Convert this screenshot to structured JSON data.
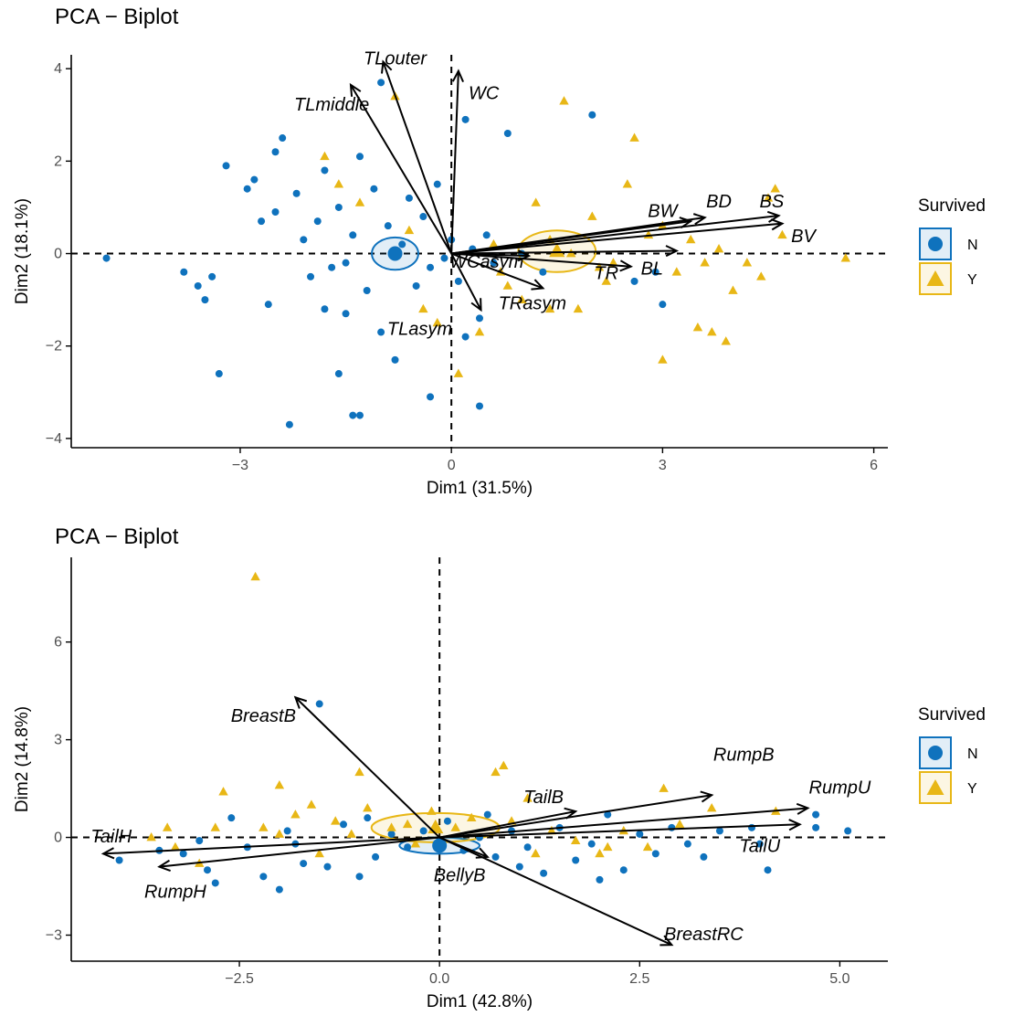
{
  "colors": {
    "N": "#0f72bd",
    "Y": "#e8b716",
    "axis": "#000000",
    "tick_text": "#4d4d4d"
  },
  "chart_data": [
    {
      "type": "scatter",
      "title": "PCA − Biplot",
      "xlabel": "Dim1 (31.5%)",
      "ylabel": "Dim2 (18.1%)",
      "xlim": [
        -5.4,
        6.2
      ],
      "ylim": [
        -4.2,
        4.3
      ],
      "xticks": [
        -3,
        0,
        3,
        6
      ],
      "xtick_labels": [
        "−3",
        "0",
        "3",
        "6"
      ],
      "yticks": [
        -4,
        -2,
        0,
        2,
        4
      ],
      "ytick_labels": [
        "−4",
        "−2",
        "0",
        "2",
        "4"
      ],
      "legend": {
        "title": "Survived",
        "entries": [
          "N",
          "Y"
        ],
        "position": "right"
      },
      "centroids": [
        {
          "group": "N",
          "x": -0.8,
          "y": 0.0,
          "rx": 0.33,
          "ry": 0.35
        },
        {
          "group": "Y",
          "x": 1.5,
          "y": 0.05,
          "rx": 0.55,
          "ry": 0.45
        }
      ],
      "vectors": [
        {
          "name": "TLouter",
          "x": -0.97,
          "y": 4.15,
          "lx": -0.8,
          "ly": 4.2
        },
        {
          "name": "TLmiddle",
          "x": -1.43,
          "y": 3.65,
          "lx": -1.7,
          "ly": 3.2
        },
        {
          "name": "WC",
          "x": 0.1,
          "y": 3.95,
          "lx": 0.46,
          "ly": 3.45
        },
        {
          "name": "BW",
          "x": 3.4,
          "y": 0.7,
          "lx": 3.0,
          "ly": 0.9
        },
        {
          "name": "BD",
          "x": 3.6,
          "y": 0.78,
          "lx": 3.8,
          "ly": 1.1
        },
        {
          "name": "BS",
          "x": 4.65,
          "y": 0.82,
          "lx": 4.55,
          "ly": 1.1
        },
        {
          "name": "BV",
          "x": 4.7,
          "y": 0.65,
          "lx": 5.0,
          "ly": 0.35
        },
        {
          "name": "BL",
          "x": 3.2,
          "y": 0.06,
          "lx": 2.85,
          "ly": -0.35
        },
        {
          "name": "TR",
          "x": 2.55,
          "y": -0.28,
          "lx": 2.2,
          "ly": -0.45
        },
        {
          "name": "WCasym",
          "x": 1.1,
          "y": -0.05,
          "lx": 0.5,
          "ly": -0.2
        },
        {
          "name": "TRasym",
          "x": 1.3,
          "y": -0.75,
          "lx": 1.15,
          "ly": -1.1
        },
        {
          "name": "TLasym",
          "x": 0.42,
          "y": -1.22,
          "lx": -0.45,
          "ly": -1.65
        }
      ],
      "series": [
        {
          "name": "N",
          "points": [
            [
              -4.9,
              -0.1
            ],
            [
              -3.8,
              -0.4
            ],
            [
              -3.6,
              -0.7
            ],
            [
              -3.5,
              -1.0
            ],
            [
              -3.3,
              -2.6
            ],
            [
              -3.2,
              1.9
            ],
            [
              -2.9,
              1.4
            ],
            [
              -2.8,
              1.6
            ],
            [
              -2.7,
              0.7
            ],
            [
              -2.6,
              -1.1
            ],
            [
              -2.5,
              0.9
            ],
            [
              -2.4,
              2.5
            ],
            [
              -2.3,
              -3.7
            ],
            [
              -2.2,
              1.3
            ],
            [
              -2.1,
              0.3
            ],
            [
              -2.0,
              -0.5
            ],
            [
              -1.9,
              0.7
            ],
            [
              -1.8,
              1.8
            ],
            [
              -1.7,
              -0.3
            ],
            [
              -1.6,
              1.0
            ],
            [
              -1.5,
              -1.3
            ],
            [
              -1.4,
              0.4
            ],
            [
              -1.3,
              2.1
            ],
            [
              -1.2,
              -0.8
            ],
            [
              -1.1,
              1.4
            ],
            [
              -1.0,
              -1.7
            ],
            [
              -0.9,
              0.6
            ],
            [
              -0.8,
              -2.3
            ],
            [
              -0.7,
              0.2
            ],
            [
              -0.6,
              1.2
            ],
            [
              -0.5,
              -0.7
            ],
            [
              -0.4,
              0.8
            ],
            [
              -0.3,
              -0.3
            ],
            [
              -0.2,
              1.5
            ],
            [
              -0.1,
              -0.1
            ],
            [
              0.0,
              0.3
            ],
            [
              0.1,
              -0.6
            ],
            [
              0.2,
              2.9
            ],
            [
              0.3,
              0.1
            ],
            [
              0.4,
              -1.4
            ],
            [
              0.5,
              0.4
            ],
            [
              0.6,
              -0.2
            ],
            [
              0.8,
              2.6
            ],
            [
              1.0,
              0.0
            ],
            [
              1.3,
              -0.4
            ],
            [
              2.0,
              3.0
            ],
            [
              2.6,
              -0.6
            ],
            [
              2.9,
              -0.4
            ],
            [
              3.0,
              -1.1
            ],
            [
              -1.6,
              -2.6
            ],
            [
              -1.4,
              -3.5
            ],
            [
              -1.3,
              -3.5
            ],
            [
              -1.8,
              -1.2
            ],
            [
              -0.3,
              -3.1
            ],
            [
              0.4,
              -3.3
            ],
            [
              0.2,
              -1.8
            ],
            [
              -1.0,
              3.7
            ],
            [
              -2.5,
              2.2
            ],
            [
              -3.4,
              -0.5
            ],
            [
              -1.5,
              -0.2
            ]
          ]
        },
        {
          "name": "Y",
          "points": [
            [
              -1.8,
              2.1
            ],
            [
              -1.6,
              1.5
            ],
            [
              -1.3,
              1.1
            ],
            [
              -0.8,
              3.4
            ],
            [
              -0.6,
              0.5
            ],
            [
              -0.4,
              -1.2
            ],
            [
              -0.2,
              -1.5
            ],
            [
              0.1,
              -2.6
            ],
            [
              0.4,
              -1.7
            ],
            [
              0.6,
              0.2
            ],
            [
              0.8,
              -0.7
            ],
            [
              1.0,
              -1.0
            ],
            [
              1.2,
              1.1
            ],
            [
              1.4,
              0.3
            ],
            [
              1.6,
              3.3
            ],
            [
              1.8,
              -1.2
            ],
            [
              2.0,
              0.8
            ],
            [
              2.1,
              -0.3
            ],
            [
              2.3,
              -0.2
            ],
            [
              2.5,
              1.5
            ],
            [
              2.6,
              2.5
            ],
            [
              2.8,
              0.4
            ],
            [
              3.0,
              0.6
            ],
            [
              3.2,
              -0.4
            ],
            [
              3.4,
              0.3
            ],
            [
              3.6,
              -0.2
            ],
            [
              3.8,
              0.1
            ],
            [
              4.0,
              -0.8
            ],
            [
              4.2,
              -0.2
            ],
            [
              4.5,
              1.2
            ],
            [
              4.6,
              1.4
            ],
            [
              4.7,
              0.4
            ],
            [
              5.6,
              -0.1
            ],
            [
              4.4,
              -0.5
            ],
            [
              3.9,
              -1.9
            ],
            [
              3.7,
              -1.7
            ],
            [
              3.5,
              -1.6
            ],
            [
              3.0,
              -2.3
            ],
            [
              1.4,
              -1.2
            ],
            [
              0.7,
              -0.4
            ],
            [
              2.2,
              -0.6
            ],
            [
              1.7,
              0.0
            ]
          ]
        }
      ]
    },
    {
      "type": "scatter",
      "title": "PCA − Biplot",
      "xlabel": "Dim1 (42.8%)",
      "ylabel": "Dim2 (14.8%)",
      "xlim": [
        -4.6,
        5.6
      ],
      "ylim": [
        -3.8,
        8.6
      ],
      "xticks": [
        -2.5,
        0.0,
        2.5,
        5.0
      ],
      "xtick_labels": [
        "−2.5",
        "0.0",
        "2.5",
        "5.0"
      ],
      "yticks": [
        -3,
        0,
        3,
        6
      ],
      "ytick_labels": [
        "−3",
        "0",
        "3",
        "6"
      ],
      "legend": {
        "title": "Survived",
        "entries": [
          "N",
          "Y"
        ],
        "position": "right"
      },
      "centroids": [
        {
          "group": "N",
          "x": 0.0,
          "y": -0.25,
          "rx": 0.5,
          "ry": 0.25
        },
        {
          "group": "Y",
          "x": -0.05,
          "y": 0.3,
          "rx": 0.8,
          "ry": 0.45
        }
      ],
      "vectors": [
        {
          "name": "BreastB",
          "x": -1.8,
          "y": 4.3,
          "lx": -2.2,
          "ly": 3.7
        },
        {
          "name": "TailB",
          "x": 1.7,
          "y": 0.8,
          "lx": 1.3,
          "ly": 1.2
        },
        {
          "name": "RumpB",
          "x": 3.4,
          "y": 1.3,
          "lx": 3.8,
          "ly": 2.5
        },
        {
          "name": "RumpU",
          "x": 4.6,
          "y": 0.9,
          "lx": 5.0,
          "ly": 1.5
        },
        {
          "name": "TailU",
          "x": 4.5,
          "y": 0.4,
          "lx": 4.0,
          "ly": -0.3
        },
        {
          "name": "TailH",
          "x": -4.2,
          "y": -0.5,
          "lx": -4.1,
          "ly": 0.0
        },
        {
          "name": "RumpH",
          "x": -3.5,
          "y": -0.9,
          "lx": -3.3,
          "ly": -1.7
        },
        {
          "name": "BellyB",
          "x": 0.6,
          "y": -0.6,
          "lx": 0.25,
          "ly": -1.2
        },
        {
          "name": "BreastRC",
          "x": 2.9,
          "y": -3.3,
          "lx": 3.3,
          "ly": -3.0
        }
      ],
      "series": [
        {
          "name": "N",
          "points": [
            [
              -4.0,
              -0.7
            ],
            [
              -3.5,
              -0.4
            ],
            [
              -3.2,
              -0.5
            ],
            [
              -2.9,
              -1.0
            ],
            [
              -2.6,
              0.6
            ],
            [
              -2.4,
              -0.3
            ],
            [
              -2.2,
              -1.2
            ],
            [
              -2.0,
              -1.6
            ],
            [
              -1.9,
              0.2
            ],
            [
              -1.7,
              -0.8
            ],
            [
              -1.5,
              4.1
            ],
            [
              -1.4,
              -0.9
            ],
            [
              -1.2,
              0.4
            ],
            [
              -1.0,
              -1.2
            ],
            [
              -0.8,
              -0.6
            ],
            [
              -0.6,
              0.1
            ],
            [
              -0.4,
              -0.3
            ],
            [
              -0.2,
              0.2
            ],
            [
              0.0,
              -0.1
            ],
            [
              0.1,
              0.5
            ],
            [
              0.3,
              -0.4
            ],
            [
              0.5,
              0.0
            ],
            [
              0.7,
              -0.6
            ],
            [
              0.9,
              0.2
            ],
            [
              1.1,
              -0.3
            ],
            [
              1.3,
              -1.1
            ],
            [
              1.5,
              0.3
            ],
            [
              1.7,
              -0.7
            ],
            [
              1.9,
              -0.2
            ],
            [
              2.1,
              0.7
            ],
            [
              2.3,
              -1.0
            ],
            [
              2.5,
              0.1
            ],
            [
              2.7,
              -0.5
            ],
            [
              2.9,
              0.3
            ],
            [
              3.1,
              -0.2
            ],
            [
              3.5,
              0.2
            ],
            [
              3.9,
              0.3
            ],
            [
              4.0,
              -0.2
            ],
            [
              4.1,
              -1.0
            ],
            [
              4.7,
              0.7
            ],
            [
              4.7,
              0.3
            ],
            [
              5.1,
              0.2
            ],
            [
              -3.0,
              -0.1
            ],
            [
              -2.8,
              -1.4
            ],
            [
              -1.8,
              -0.2
            ],
            [
              -0.9,
              0.6
            ],
            [
              0.6,
              0.7
            ],
            [
              1.0,
              -0.9
            ],
            [
              2.0,
              -1.3
            ],
            [
              3.3,
              -0.6
            ]
          ]
        },
        {
          "name": "Y",
          "points": [
            [
              -3.6,
              0.0
            ],
            [
              -3.4,
              0.3
            ],
            [
              -3.3,
              -0.3
            ],
            [
              -3.0,
              -0.8
            ],
            [
              -2.8,
              0.3
            ],
            [
              -2.7,
              1.4
            ],
            [
              -2.3,
              8.0
            ],
            [
              -2.2,
              0.3
            ],
            [
              -2.0,
              0.1
            ],
            [
              -1.8,
              0.7
            ],
            [
              -1.6,
              1.0
            ],
            [
              -1.3,
              0.5
            ],
            [
              -1.1,
              0.1
            ],
            [
              -0.9,
              0.9
            ],
            [
              -0.6,
              0.3
            ],
            [
              -0.3,
              -0.2
            ],
            [
              -0.1,
              0.8
            ],
            [
              0.2,
              0.3
            ],
            [
              0.4,
              0.6
            ],
            [
              0.7,
              2.0
            ],
            [
              0.9,
              0.5
            ],
            [
              1.1,
              1.2
            ],
            [
              1.4,
              0.2
            ],
            [
              1.7,
              -0.1
            ],
            [
              2.0,
              -0.5
            ],
            [
              2.3,
              0.2
            ],
            [
              2.6,
              -0.3
            ],
            [
              2.8,
              1.5
            ],
            [
              3.0,
              0.4
            ],
            [
              3.4,
              0.9
            ],
            [
              4.2,
              0.8
            ],
            [
              0.8,
              2.2
            ],
            [
              -1.0,
              2.0
            ],
            [
              -2.0,
              1.6
            ],
            [
              1.2,
              -0.5
            ],
            [
              -1.5,
              -0.5
            ],
            [
              -0.4,
              0.4
            ],
            [
              2.1,
              -0.3
            ]
          ]
        }
      ]
    }
  ]
}
